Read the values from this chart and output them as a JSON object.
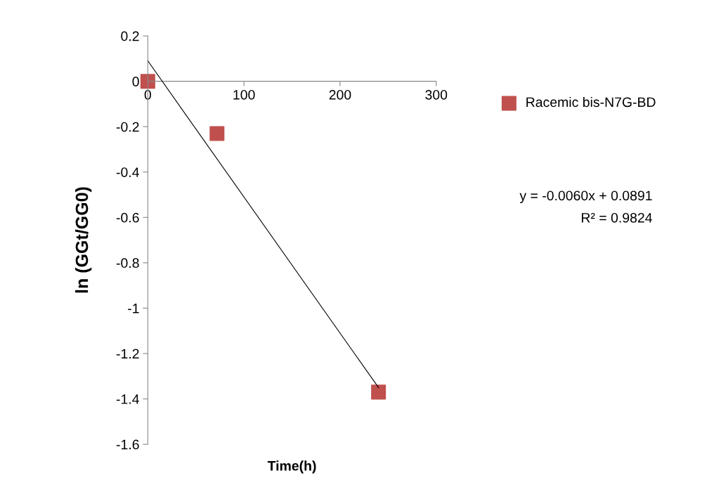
{
  "chart_data": {
    "type": "scatter",
    "xlabel": "Time(h)",
    "ylabel": "ln (GGt/GG0)",
    "x": [
      0,
      72,
      240
    ],
    "series": [
      {
        "name": "Racemic bis-N7G-BD",
        "color": "#c0504d",
        "values": [
          0,
          -0.23,
          -1.37
        ],
        "marker": "square"
      },
      {
        "type": "line",
        "color": "#000000",
        "x": [
          0,
          240
        ],
        "values": [
          0.09,
          -1.35
        ],
        "marker": "none"
      }
    ],
    "annotations": [
      "y = -0.0060x + 0.0891",
      "R² = 0.9824"
    ],
    "xlim": [
      0,
      300
    ],
    "xticks": [
      0,
      100,
      200,
      300
    ],
    "ylim": [
      -1.6,
      0.2
    ],
    "yticks": [
      0.2,
      0,
      -0.2,
      -0.4,
      -0.6,
      -0.8,
      -1,
      -1.2,
      -1.4,
      -1.6
    ],
    "grid": false,
    "legend": "right"
  }
}
